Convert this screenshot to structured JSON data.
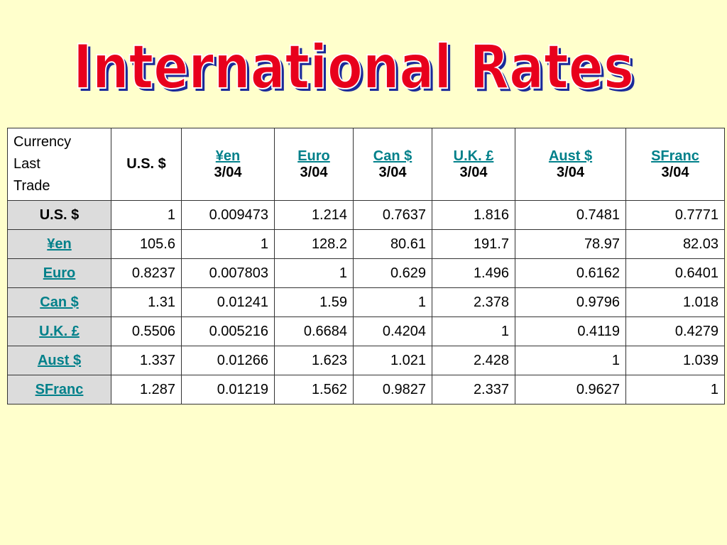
{
  "title": "International Rates",
  "table": {
    "corner": "Currency\nLast\nTrade",
    "columns": [
      {
        "name": "U.S. $"
      },
      {
        "name": "¥en",
        "date": "3/04"
      },
      {
        "name": "Euro",
        "date": "3/04"
      },
      {
        "name": "Can $",
        "date": "3/04"
      },
      {
        "name": "U.K. £",
        "date": "3/04"
      },
      {
        "name": "Aust $",
        "date": "3/04"
      },
      {
        "name": "SFranc",
        "date": "3/04"
      }
    ],
    "rows": [
      {
        "label": "U.S. $",
        "cells": [
          "1",
          "0.009473",
          "1.214",
          "0.7637",
          "1.816",
          "0.7481",
          "0.7771"
        ]
      },
      {
        "label": "¥en",
        "cells": [
          "105.6",
          "1",
          "128.2",
          "80.61",
          "191.7",
          "78.97",
          "82.03"
        ]
      },
      {
        "label": "Euro",
        "cells": [
          "0.8237",
          "0.007803",
          "1",
          "0.629",
          "1.496",
          "0.6162",
          "0.6401"
        ]
      },
      {
        "label": "Can $",
        "cells": [
          "1.31",
          "0.01241",
          "1.59",
          "1",
          "2.378",
          "0.9796",
          "1.018"
        ]
      },
      {
        "label": "U.K. £",
        "cells": [
          "0.5506",
          "0.005216",
          "0.6684",
          "0.4204",
          "1",
          "0.4119",
          "0.4279"
        ]
      },
      {
        "label": "Aust $",
        "cells": [
          "1.337",
          "0.01266",
          "1.623",
          "1.021",
          "2.428",
          "1",
          "1.039"
        ]
      },
      {
        "label": "SFranc",
        "cells": [
          "1.287",
          "0.01219",
          "1.562",
          "0.9827",
          "2.337",
          "0.9627",
          "1"
        ]
      }
    ]
  }
}
